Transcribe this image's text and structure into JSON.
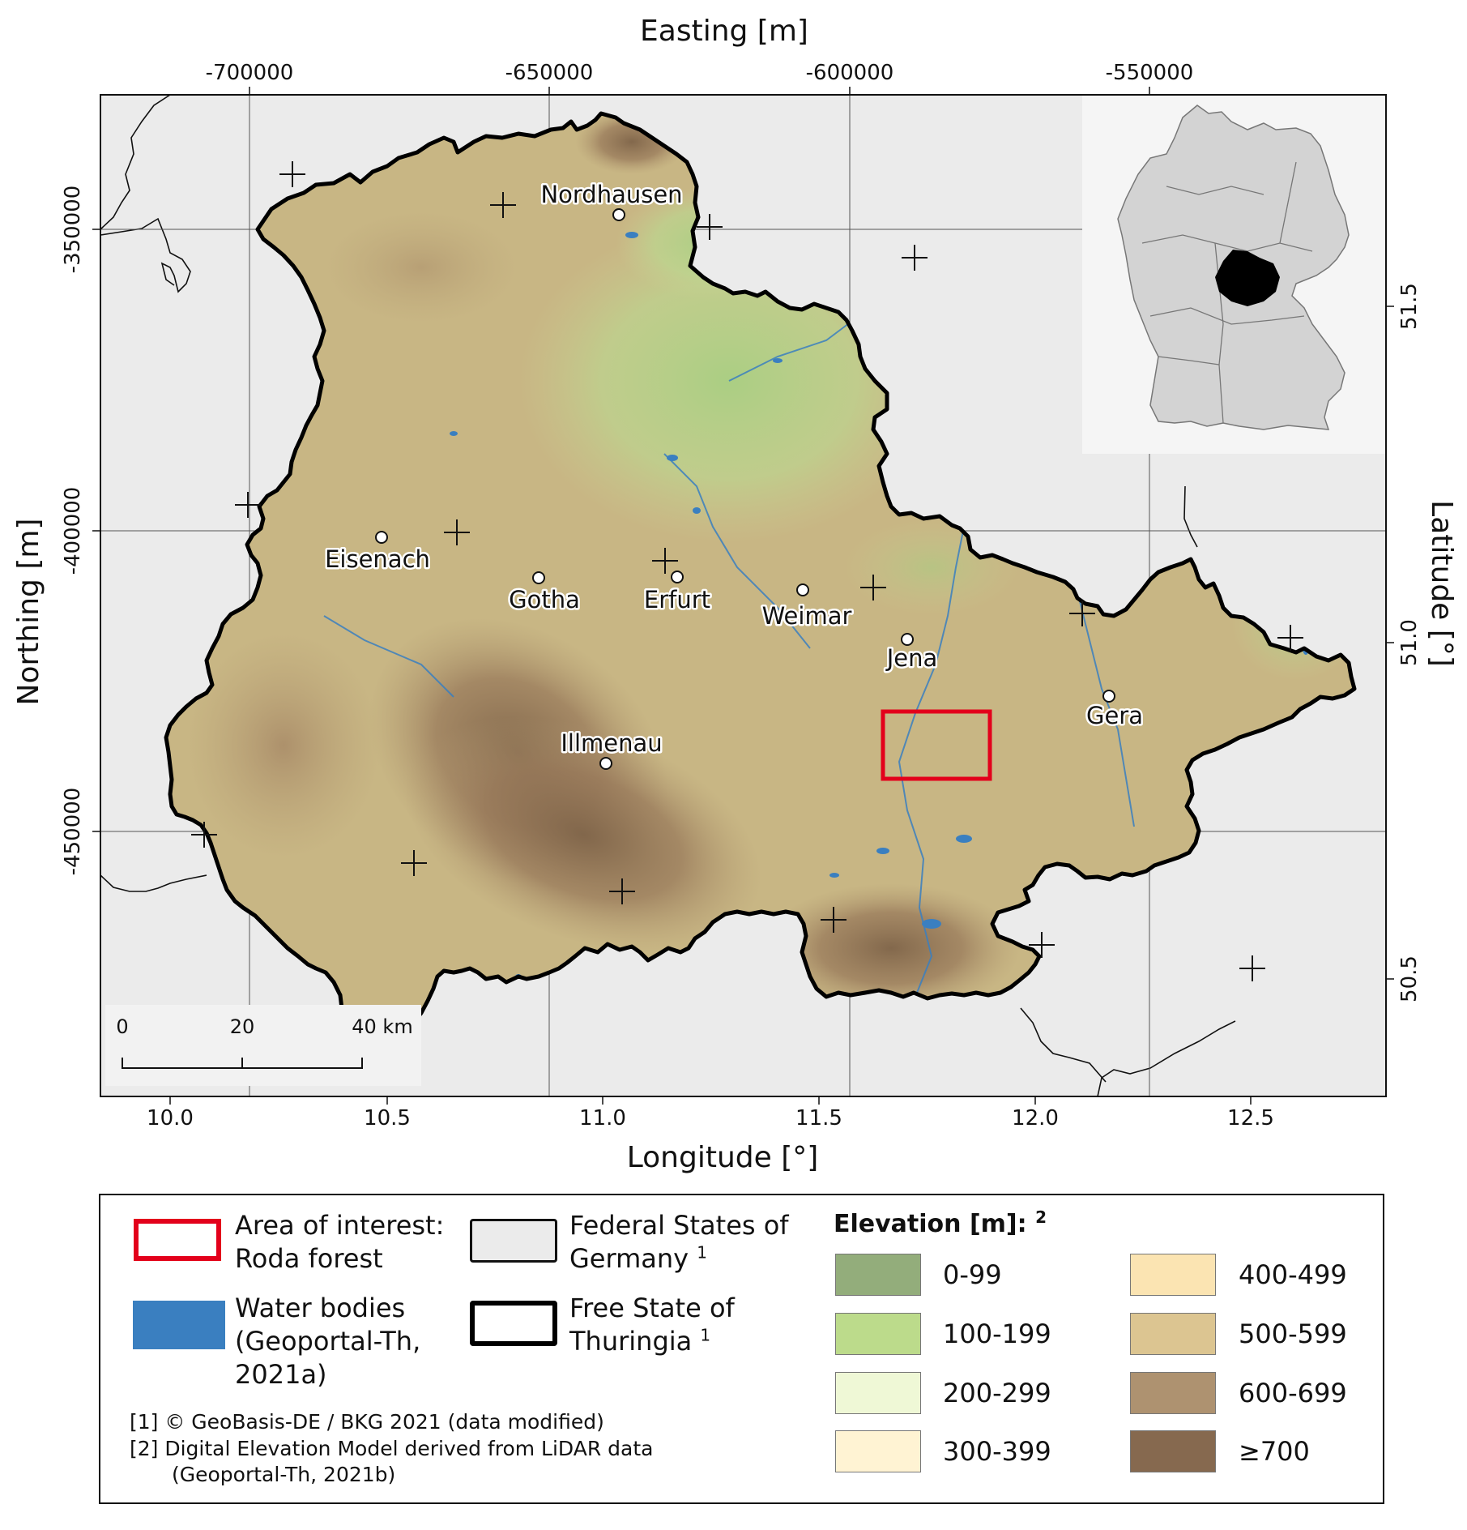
{
  "map": {
    "top_axis_label": "Easting [m]",
    "bottom_axis_label": "Longitude [°]",
    "left_axis_label": "Northing [m]",
    "right_axis_label": "Latitude [°]",
    "easting_ticks": [
      "-700000",
      "-650000",
      "-600000",
      "-550000"
    ],
    "northing_ticks": [
      "-350000",
      "-400000",
      "-450000"
    ],
    "longitude_ticks": [
      "10.0",
      "10.5",
      "11.0",
      "11.5",
      "12.0",
      "12.5"
    ],
    "latitude_ticks": [
      "51.5",
      "51.0",
      "50.5"
    ],
    "cities": [
      {
        "name": "Nordhausen"
      },
      {
        "name": "Eisenach"
      },
      {
        "name": "Gotha"
      },
      {
        "name": "Erfurt"
      },
      {
        "name": "Weimar"
      },
      {
        "name": "Jena"
      },
      {
        "name": "Gera"
      },
      {
        "name": "Illmenau"
      }
    ],
    "scalebar": {
      "labels": [
        "0",
        "20",
        "40 km"
      ]
    },
    "colors": {
      "background": "#ebebeb",
      "terrain_low": "#9ac27a",
      "terrain_mid": "#d9c68f",
      "terrain_high": "#8a6e55",
      "water": "#3a7fc0",
      "area_of_interest": "#e3001b",
      "thuringia_inset": "#000000",
      "germany_inset": "#d3d3d3"
    }
  },
  "legend": {
    "aoi": {
      "line1": "Area of interest:",
      "line2": "Roda forest"
    },
    "water": {
      "line1": "Water bodies",
      "line2": "(Geoportal-Th,",
      "line3": "2021a)"
    },
    "federal": {
      "line1": "Federal States of",
      "line2": "Germany",
      "sup": "1"
    },
    "thuringia": {
      "line1": "Free State of",
      "line2": "Thuringia",
      "sup": "1"
    },
    "elevation_title": "Elevation [m]:",
    "elevation_title_sup": "2",
    "elevation_classes": [
      {
        "label": "0-99",
        "color": "#93ad7b"
      },
      {
        "label": "100-199",
        "color": "#bcdb8b"
      },
      {
        "label": "200-299",
        "color": "#eff8d6"
      },
      {
        "label": "300-399",
        "color": "#fff3d3"
      },
      {
        "label": "400-499",
        "color": "#fbe4b2"
      },
      {
        "label": "500-599",
        "color": "#dcc591"
      },
      {
        "label": "600-699",
        "color": "#ae9270"
      },
      {
        "label": "≥700",
        "color": "#86694f"
      }
    ],
    "notes": [
      "[1] © GeoBasis-DE / BKG 2021 (data modified)",
      "[2] Digital Elevation Model derived from LiDAR data",
      "(Geoportal-Th, 2021b)"
    ]
  }
}
